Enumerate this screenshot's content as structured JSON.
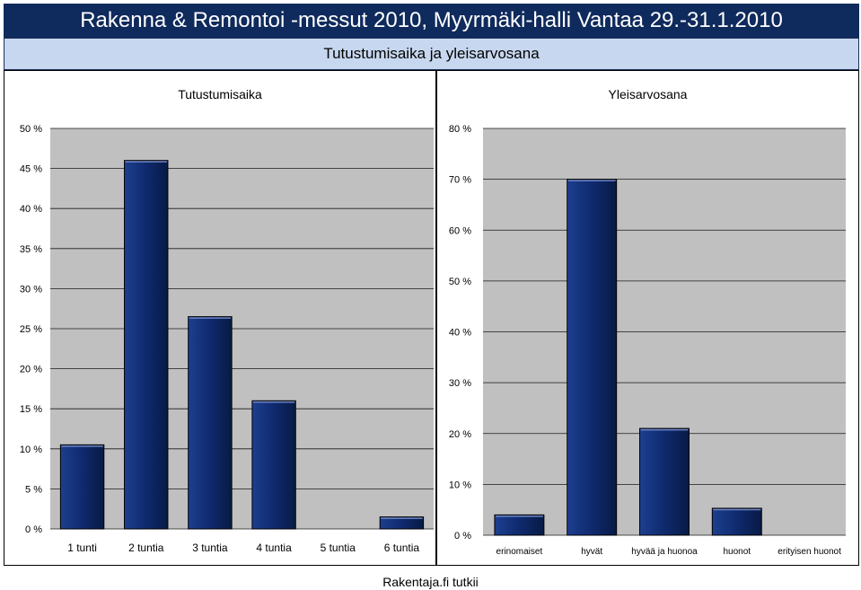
{
  "page": {
    "title": "Rakenna & Remontoi -messut 2010, Myyrmäki-halli Vantaa 29.-31.1.2010",
    "subtitle": "Tutustumisaika ja yleisarvosana",
    "footer": "Rakentaja.fi tutkii"
  },
  "colors": {
    "title_bg": "#0f2a5c",
    "subtitle_bg": "#c7d7ef",
    "plot_bg": "#c0c0c0",
    "bar_fill": "#0f2a6e"
  },
  "chart_data": [
    {
      "type": "bar",
      "title": "Tutustumisaika",
      "categories": [
        "1 tunti",
        "2 tuntia",
        "3 tuntia",
        "4 tuntia",
        "5 tuntia",
        "6 tuntia"
      ],
      "values": [
        10.5,
        46,
        26.5,
        16,
        0,
        1.5
      ],
      "ylim": [
        0,
        50
      ],
      "yticks": [
        "0 %",
        "5 %",
        "10 %",
        "15 %",
        "20 %",
        "25 %",
        "30 %",
        "35 %",
        "40 %",
        "45 %",
        "50 %"
      ],
      "grid": true
    },
    {
      "type": "bar",
      "title": "Yleisarvosana",
      "categories": [
        "erinomaiset",
        "hyvät",
        "hyvää ja huonoa",
        "huonot",
        "erityisen huonot"
      ],
      "values": [
        4,
        70,
        21,
        5.3,
        0
      ],
      "ylim": [
        0,
        80
      ],
      "yticks": [
        "0 %",
        "10 %",
        "20 %",
        "30 %",
        "40 %",
        "50 %",
        "60 %",
        "70 %",
        "80 %"
      ],
      "grid": true
    }
  ]
}
